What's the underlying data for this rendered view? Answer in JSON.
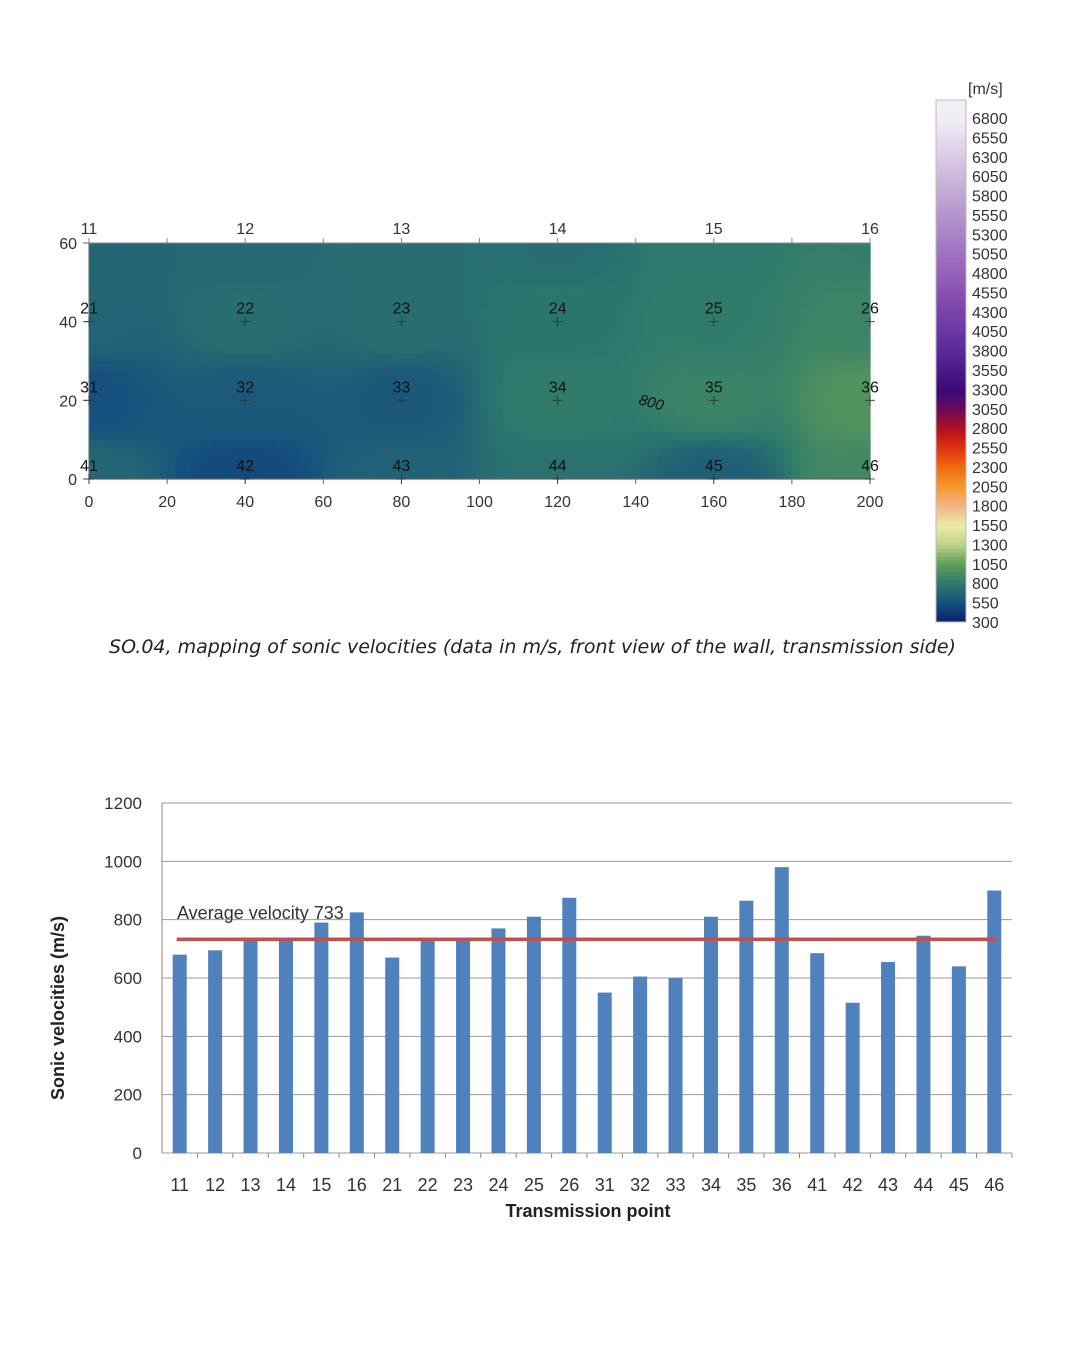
{
  "chart_data": [
    {
      "type": "heatmap",
      "caption": "SO.04, mapping of sonic velocities (data in m/s, front view of the wall, transmission side)",
      "x_ticks": [
        0,
        20,
        40,
        60,
        80,
        100,
        120,
        140,
        160,
        180,
        200
      ],
      "y_ticks": [
        0,
        20,
        40,
        60
      ],
      "xlim": [
        0,
        200
      ],
      "ylim": [
        0,
        60
      ],
      "points": [
        {
          "label": "11",
          "x": 0,
          "y": 60,
          "value": 680
        },
        {
          "label": "12",
          "x": 40,
          "y": 60,
          "value": 695
        },
        {
          "label": "13",
          "x": 80,
          "y": 60,
          "value": 730
        },
        {
          "label": "14",
          "x": 120,
          "y": 60,
          "value": 730
        },
        {
          "label": "15",
          "x": 160,
          "y": 60,
          "value": 790
        },
        {
          "label": "16",
          "x": 200,
          "y": 60,
          "value": 825
        },
        {
          "label": "21",
          "x": 0,
          "y": 40,
          "value": 670
        },
        {
          "label": "22",
          "x": 40,
          "y": 40,
          "value": 730
        },
        {
          "label": "23",
          "x": 80,
          "y": 40,
          "value": 730
        },
        {
          "label": "24",
          "x": 120,
          "y": 40,
          "value": 770
        },
        {
          "label": "25",
          "x": 160,
          "y": 40,
          "value": 810
        },
        {
          "label": "26",
          "x": 200,
          "y": 40,
          "value": 875
        },
        {
          "label": "31",
          "x": 0,
          "y": 20,
          "value": 550
        },
        {
          "label": "32",
          "x": 40,
          "y": 20,
          "value": 605
        },
        {
          "label": "33",
          "x": 80,
          "y": 20,
          "value": 600
        },
        {
          "label": "34",
          "x": 120,
          "y": 20,
          "value": 810
        },
        {
          "label": "35",
          "x": 160,
          "y": 20,
          "value": 865
        },
        {
          "label": "36",
          "x": 200,
          "y": 20,
          "value": 980
        },
        {
          "label": "41",
          "x": 0,
          "y": 0,
          "value": 685
        },
        {
          "label": "42",
          "x": 40,
          "y": 0,
          "value": 515
        },
        {
          "label": "43",
          "x": 80,
          "y": 0,
          "value": 655
        },
        {
          "label": "44",
          "x": 120,
          "y": 0,
          "value": 745
        },
        {
          "label": "45",
          "x": 160,
          "y": 0,
          "value": 640
        },
        {
          "label": "46",
          "x": 200,
          "y": 0,
          "value": 900
        }
      ],
      "contour_label": "800",
      "colorbar": {
        "unit": "[m/s]",
        "ticks": [
          6800,
          6550,
          6300,
          6050,
          5800,
          5550,
          5300,
          5050,
          4800,
          4550,
          4300,
          4050,
          3800,
          3550,
          3300,
          3050,
          2800,
          2550,
          2300,
          2050,
          1800,
          1550,
          1300,
          1050,
          800,
          550,
          300
        ],
        "colors": [
          {
            "value": 300,
            "color": "#0b1f6b"
          },
          {
            "value": 550,
            "color": "#16507e"
          },
          {
            "value": 800,
            "color": "#2f7a6c"
          },
          {
            "value": 1050,
            "color": "#5f9c58"
          },
          {
            "value": 1300,
            "color": "#bcd48a"
          },
          {
            "value": 1550,
            "color": "#eeeaa8"
          },
          {
            "value": 1800,
            "color": "#f2b488"
          },
          {
            "value": 2050,
            "color": "#f49a2a"
          },
          {
            "value": 2300,
            "color": "#f06a10"
          },
          {
            "value": 2550,
            "color": "#e23010"
          },
          {
            "value": 2800,
            "color": "#b01020"
          },
          {
            "value": 3050,
            "color": "#6a0a5a"
          },
          {
            "value": 3300,
            "color": "#3a0a78"
          },
          {
            "value": 3800,
            "color": "#5a2a9a"
          },
          {
            "value": 4550,
            "color": "#8a50b4"
          },
          {
            "value": 5550,
            "color": "#b494cc"
          },
          {
            "value": 6800,
            "color": "#f2eef6"
          }
        ]
      }
    },
    {
      "type": "bar",
      "categories": [
        "11",
        "12",
        "13",
        "14",
        "15",
        "16",
        "21",
        "22",
        "23",
        "24",
        "25",
        "26",
        "31",
        "32",
        "33",
        "34",
        "35",
        "36",
        "41",
        "42",
        "43",
        "44",
        "45",
        "46"
      ],
      "values": [
        680,
        695,
        730,
        730,
        790,
        825,
        670,
        730,
        730,
        770,
        810,
        875,
        550,
        605,
        600,
        810,
        865,
        980,
        685,
        515,
        655,
        745,
        640,
        900
      ],
      "xlabel": "Transmission point",
      "ylabel": "Sonic velocities (m/s)",
      "ylim": [
        0,
        1200
      ],
      "y_ticks": [
        0,
        200,
        400,
        600,
        800,
        1000,
        1200
      ],
      "grid": true,
      "bar_color": "#4f81bd",
      "average": {
        "value": 733,
        "label": "Average velocity 733",
        "color": "#c0504d"
      }
    }
  ]
}
